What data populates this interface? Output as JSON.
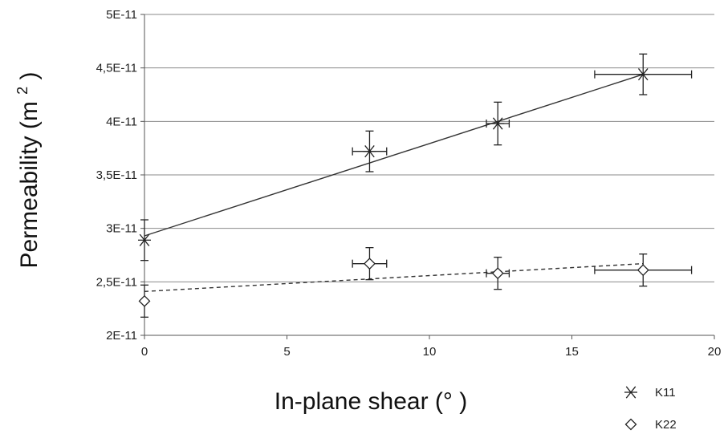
{
  "chart_data": {
    "type": "scatter",
    "xlabel": "In-plane shear (°  )",
    "ylabel": "Permeability (m",
    "ylabel_sup": "2",
    "ylabel_close": ")",
    "xlim": [
      0,
      20
    ],
    "ylim": [
      2e-11,
      5e-11
    ],
    "x_ticks": [
      0,
      5,
      10,
      15,
      20
    ],
    "x_tick_labels": [
      "0",
      "5",
      "10",
      "15",
      "20"
    ],
    "y_ticks": [
      2e-11,
      2.5e-11,
      3e-11,
      3.5e-11,
      4e-11,
      4.5e-11,
      5e-11
    ],
    "y_tick_labels": [
      "2E-11",
      "2,5E-11",
      "3E-11",
      "3,5E-11",
      "4E-11",
      "4,5E-11",
      "5E-11"
    ],
    "grid": "horizontal",
    "legend_position": "bottom-right",
    "series": [
      {
        "name": "K11",
        "marker": "asterisk",
        "points": [
          {
            "x": 0,
            "y": 2.89e-11,
            "xerr": 0,
            "yerr": 1.9e-12
          },
          {
            "x": 7.9,
            "y": 3.72e-11,
            "xerr": 0.6,
            "yerr": 1.9e-12
          },
          {
            "x": 12.4,
            "y": 3.98e-11,
            "xerr": 0.4,
            "yerr": 2e-12
          },
          {
            "x": 17.5,
            "y": 4.44e-11,
            "xerr": 1.7,
            "yerr": 1.9e-12
          }
        ],
        "trendline": {
          "style": "solid",
          "x": [
            0,
            17.5
          ],
          "y": [
            2.93e-11,
            4.44e-11
          ]
        }
      },
      {
        "name": "K22",
        "marker": "diamond",
        "points": [
          {
            "x": 0,
            "y": 2.32e-11,
            "xerr": 0,
            "yerr": 1.5e-12
          },
          {
            "x": 7.9,
            "y": 2.67e-11,
            "xerr": 0.6,
            "yerr": 1.5e-12
          },
          {
            "x": 12.4,
            "y": 2.58e-11,
            "xerr": 0.4,
            "yerr": 1.5e-12
          },
          {
            "x": 17.5,
            "y": 2.61e-11,
            "xerr": 1.7,
            "yerr": 1.5e-12
          }
        ],
        "trendline": {
          "style": "dashed",
          "x": [
            0,
            17.5
          ],
          "y": [
            2.41e-11,
            2.67e-11
          ]
        }
      }
    ]
  }
}
